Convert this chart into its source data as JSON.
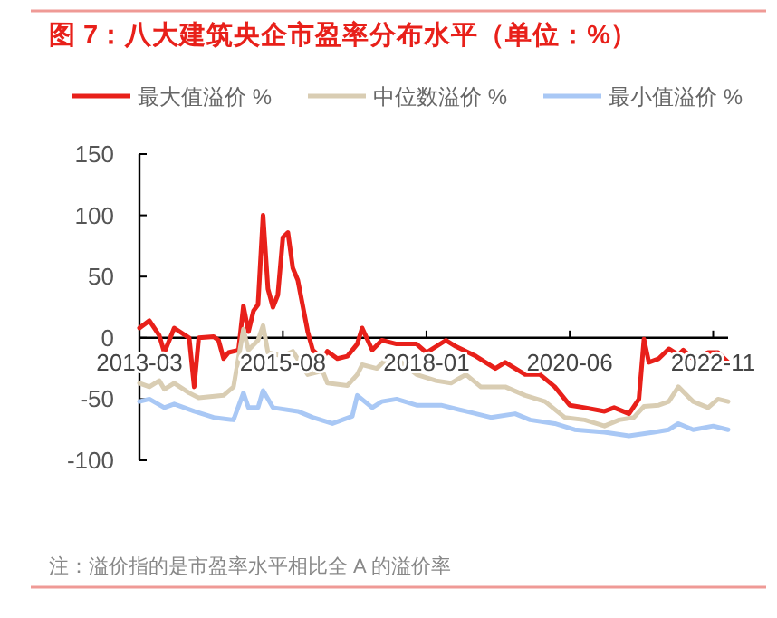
{
  "chart_data": {
    "type": "line",
    "title": "图 7：八大建筑央企市盈率分布水平（单位：%）",
    "legend": "top",
    "grid": false,
    "line_style": "solid",
    "xlim": [
      "2013-03",
      "2023-02"
    ],
    "xticks": [
      "2013-03",
      "2015-08",
      "2018-01",
      "2020-06",
      "2022-11"
    ],
    "ylim": [
      -100,
      150
    ],
    "yticks": [
      -100,
      -50,
      0,
      50,
      100,
      150
    ],
    "series": [
      {
        "name": "最大值溢价 %",
        "color": "#e8201a",
        "x": [
          "2013-03",
          "2013-05",
          "2013-07",
          "2013-08",
          "2013-10",
          "2014-01",
          "2014-02",
          "2014-03",
          "2014-06",
          "2014-07",
          "2014-08",
          "2014-09",
          "2014-11",
          "2014-12",
          "2015-01",
          "2015-02",
          "2015-03",
          "2015-04",
          "2015-05",
          "2015-06",
          "2015-07",
          "2015-08",
          "2015-09",
          "2015-10",
          "2015-11",
          "2016-01",
          "2016-02",
          "2016-04",
          "2016-05",
          "2016-07",
          "2016-09",
          "2016-11",
          "2016-12",
          "2017-02",
          "2017-04",
          "2017-07",
          "2017-11",
          "2018-01",
          "2018-05",
          "2018-07",
          "2018-11",
          "2019-03",
          "2019-05",
          "2019-09",
          "2019-12",
          "2020-03",
          "2020-06",
          "2020-09",
          "2021-01",
          "2021-03",
          "2021-06",
          "2021-08",
          "2021-09",
          "2021-10",
          "2021-12",
          "2022-02",
          "2022-04",
          "2022-05",
          "2022-07",
          "2022-10",
          "2022-12",
          "2023-02"
        ],
        "values": [
          8,
          14,
          2,
          -12,
          8,
          0,
          -40,
          0,
          1,
          -2,
          -17,
          -12,
          -10,
          26,
          5,
          22,
          27,
          100,
          40,
          25,
          35,
          82,
          86,
          57,
          47,
          5,
          -10,
          -17,
          -11,
          -17,
          -15,
          -5,
          8,
          -10,
          -2,
          -5,
          -5,
          -12,
          -2,
          -7,
          -15,
          -25,
          -20,
          -30,
          -30,
          -40,
          -55,
          -57,
          -60,
          -57,
          -62,
          -50,
          -1,
          -20,
          -17,
          -9,
          -14,
          -10,
          -17,
          -12,
          -12,
          -20
        ]
      },
      {
        "name": "中位数溢价 %",
        "color": "#d9cdb3",
        "x": [
          "2013-03",
          "2013-05",
          "2013-07",
          "2013-08",
          "2013-10",
          "2014-01",
          "2014-03",
          "2014-08",
          "2014-10",
          "2014-12",
          "2015-01",
          "2015-03",
          "2015-04",
          "2015-05",
          "2015-08",
          "2015-10",
          "2016-01",
          "2016-04",
          "2016-05",
          "2016-09",
          "2016-11",
          "2016-12",
          "2017-03",
          "2017-05",
          "2017-07",
          "2017-11",
          "2018-03",
          "2018-06",
          "2018-09",
          "2018-12",
          "2019-05",
          "2019-09",
          "2020-01",
          "2020-05",
          "2020-09",
          "2021-01",
          "2021-04",
          "2021-07",
          "2021-09",
          "2021-12",
          "2022-02",
          "2022-04",
          "2022-07",
          "2022-10",
          "2022-12",
          "2023-02"
        ],
        "values": [
          -37,
          -40,
          -35,
          -42,
          -37,
          -45,
          -49,
          -47,
          -40,
          7,
          -10,
          -2,
          10,
          -12,
          -15,
          -11,
          -30,
          -27,
          -37,
          -39,
          -30,
          -22,
          -25,
          -17,
          -17,
          -30,
          -35,
          -37,
          -30,
          -40,
          -40,
          -47,
          -52,
          -65,
          -67,
          -72,
          -67,
          -65,
          -56,
          -55,
          -52,
          -40,
          -52,
          -57,
          -50,
          -52
        ]
      },
      {
        "name": "最小值溢价 %",
        "color": "#a9c8f5",
        "x": [
          "2013-03",
          "2013-05",
          "2013-08",
          "2013-10",
          "2014-02",
          "2014-06",
          "2014-10",
          "2014-12",
          "2015-01",
          "2015-03",
          "2015-04",
          "2015-06",
          "2015-11",
          "2016-02",
          "2016-06",
          "2016-10",
          "2016-11",
          "2017-02",
          "2017-04",
          "2017-07",
          "2017-11",
          "2018-04",
          "2018-09",
          "2019-02",
          "2019-07",
          "2019-10",
          "2020-03",
          "2020-07",
          "2021-01",
          "2021-06",
          "2021-11",
          "2022-02",
          "2022-04",
          "2022-07",
          "2022-11",
          "2023-02"
        ],
        "values": [
          -52,
          -50,
          -57,
          -54,
          -60,
          -65,
          -67,
          -45,
          -57,
          -57,
          -43,
          -57,
          -60,
          -65,
          -70,
          -64,
          -47,
          -57,
          -52,
          -50,
          -55,
          -55,
          -60,
          -65,
          -62,
          -67,
          -70,
          -75,
          -77,
          -80,
          -77,
          -75,
          -70,
          -75,
          -72,
          -75
        ]
      }
    ],
    "annotations": [
      "注：溢价指的是市盈率水平相比全 A 的溢价率"
    ]
  }
}
